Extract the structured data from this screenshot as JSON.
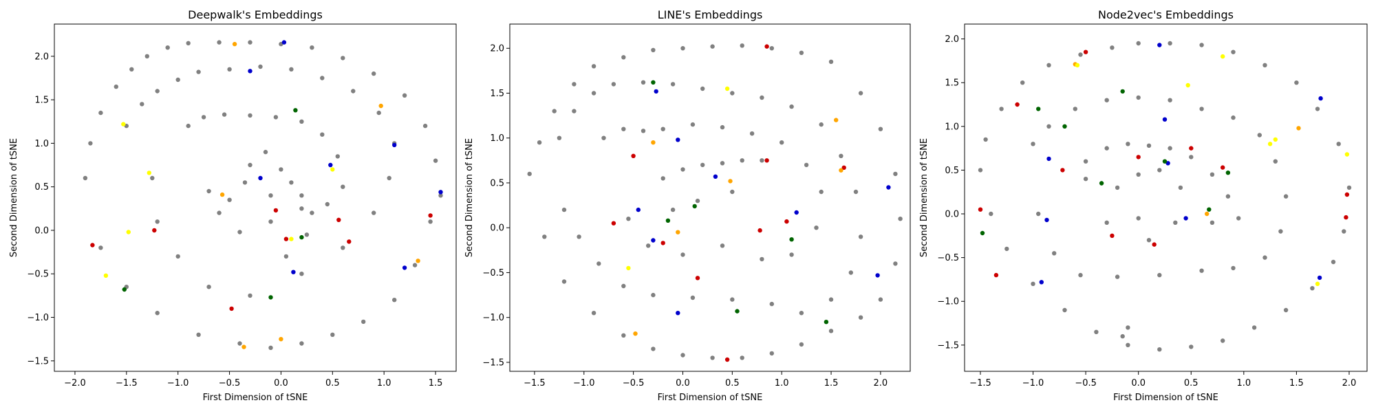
{
  "chart_data": [
    {
      "type": "scatter",
      "title": "Deepwalk's Embeddings",
      "xlabel": "First Dimension of tSNE",
      "ylabel": "Second Dimension of tSNE",
      "xlim": [
        -2.2,
        1.7
      ],
      "ylim": [
        -1.62,
        2.37
      ],
      "xticks": [
        -2.0,
        -1.5,
        -1.0,
        -0.5,
        0.0,
        0.5,
        1.0,
        1.5
      ],
      "xtick_labels": [
        "−2.0",
        "−1.5",
        "−1.0",
        "−0.5",
        "0.0",
        "0.5",
        "1.0",
        "1.5"
      ],
      "yticks": [
        -1.5,
        -1.0,
        -0.5,
        0.0,
        0.5,
        1.0,
        1.5,
        2.0
      ],
      "ytick_labels": [
        "−1.5",
        "−1.0",
        "−0.5",
        "0.0",
        "0.5",
        "1.0",
        "1.5",
        "2.0"
      ],
      "grid": false,
      "series": [
        {
          "color": "#808080",
          "x": [
            -1.9,
            -1.85,
            -1.75,
            -1.6,
            -1.45,
            -1.3,
            -1.1,
            -0.9,
            -0.6,
            -0.3,
            0.0,
            0.3,
            0.6,
            0.9,
            1.2,
            1.4,
            1.5,
            1.55,
            1.45,
            1.3,
            1.1,
            0.8,
            0.5,
            0.2,
            -0.1,
            -0.4,
            -0.8,
            -1.2,
            -1.5,
            -1.75,
            -1.5,
            -1.35,
            -1.2,
            -1.0,
            -0.8,
            -0.5,
            -0.2,
            0.1,
            0.4,
            0.7,
            0.95,
            1.1,
            1.05,
            0.9,
            0.6,
            0.2,
            -0.3,
            -0.7,
            -1.0,
            -1.2,
            -1.25,
            -0.9,
            -0.75,
            -0.55,
            -0.3,
            -0.05,
            0.2,
            0.4,
            0.55,
            0.6,
            0.45,
            0.2,
            -0.1,
            -0.4,
            -0.6,
            -0.7,
            -0.3,
            -0.15,
            0.0,
            0.1,
            0.2,
            0.3,
            -0.1,
            -0.35,
            -0.5,
            0.25,
            0.05
          ],
          "y": [
            0.6,
            1.0,
            1.35,
            1.65,
            1.85,
            2.0,
            2.1,
            2.15,
            2.16,
            2.16,
            2.14,
            2.1,
            1.98,
            1.8,
            1.55,
            1.2,
            0.8,
            0.4,
            0.1,
            -0.4,
            -0.8,
            -1.05,
            -1.2,
            -1.3,
            -1.35,
            -1.3,
            -1.2,
            -0.95,
            -0.65,
            -0.2,
            1.2,
            1.45,
            1.6,
            1.73,
            1.82,
            1.85,
            1.88,
            1.85,
            1.75,
            1.6,
            1.35,
            1.0,
            0.6,
            0.2,
            -0.2,
            -0.5,
            -0.75,
            -0.65,
            -0.3,
            0.1,
            0.6,
            1.2,
            1.3,
            1.33,
            1.32,
            1.3,
            1.25,
            1.1,
            0.85,
            0.5,
            0.3,
            0.25,
            0.1,
            -0.02,
            0.2,
            0.45,
            0.75,
            0.9,
            0.7,
            0.55,
            0.4,
            0.2,
            0.4,
            0.55,
            0.35,
            -0.05,
            -0.3
          ]
        },
        {
          "color": "#0000cc",
          "x": [
            0.03,
            -0.3,
            1.1,
            1.55,
            0.48,
            -0.2,
            1.2,
            0.12
          ],
          "y": [
            2.16,
            1.83,
            0.98,
            0.44,
            0.75,
            0.6,
            -0.43,
            -0.48
          ]
        },
        {
          "color": "#cc0000",
          "x": [
            -1.83,
            -1.23,
            -0.05,
            0.05,
            0.56,
            0.66,
            1.45,
            -0.48
          ],
          "y": [
            -0.17,
            0.0,
            0.23,
            -0.1,
            0.12,
            -0.13,
            0.17,
            -0.9
          ]
        },
        {
          "color": "#006400",
          "x": [
            0.14,
            -1.52,
            -0.1,
            0.2
          ],
          "y": [
            1.38,
            -0.68,
            -0.77,
            -0.08
          ]
        },
        {
          "color": "#ffa500",
          "x": [
            -0.45,
            0.97,
            -0.36,
            0.0,
            1.33,
            -0.57
          ],
          "y": [
            2.14,
            1.43,
            -1.34,
            -1.25,
            -0.35,
            0.41
          ]
        },
        {
          "color": "#ffff00",
          "x": [
            -1.53,
            -1.28,
            0.5,
            -1.48,
            -1.7,
            0.1
          ],
          "y": [
            1.22,
            0.66,
            0.7,
            -0.02,
            -0.52,
            -0.1
          ]
        }
      ]
    },
    {
      "type": "scatter",
      "title": "LINE's Embeddings",
      "xlabel": "First Dimension of tSNE",
      "ylabel": "Second Dimension of tSNE",
      "xlim": [
        -1.75,
        2.3
      ],
      "ylim": [
        -1.6,
        2.27
      ],
      "xticks": [
        -1.5,
        -1.0,
        -0.5,
        0.0,
        0.5,
        1.0,
        1.5,
        2.0
      ],
      "xtick_labels": [
        "−1.5",
        "−1.0",
        "−0.5",
        "0.0",
        "0.5",
        "1.0",
        "1.5",
        "2.0"
      ],
      "yticks": [
        -1.5,
        -1.0,
        -0.5,
        0.0,
        0.5,
        1.0,
        1.5,
        2.0
      ],
      "ytick_labels": [
        "−1.5",
        "−1.0",
        "−0.5",
        "0.0",
        "0.5",
        "1.0",
        "1.5",
        "2.0"
      ],
      "grid": false,
      "series": [
        {
          "color": "#808080",
          "x": [
            -1.55,
            -1.45,
            -1.3,
            -1.1,
            -0.9,
            -0.6,
            -0.3,
            0.0,
            0.3,
            0.6,
            0.9,
            1.2,
            1.5,
            1.8,
            2.0,
            2.15,
            2.2,
            2.15,
            2.0,
            1.8,
            1.5,
            1.2,
            0.9,
            0.6,
            0.3,
            0.0,
            -0.3,
            -0.6,
            -0.9,
            -1.2,
            -1.4,
            -1.25,
            -1.1,
            -0.9,
            -0.7,
            -0.4,
            -0.1,
            0.2,
            0.5,
            0.8,
            1.1,
            1.4,
            1.6,
            1.75,
            1.8,
            1.7,
            1.5,
            1.2,
            0.9,
            0.5,
            0.1,
            -0.3,
            -0.6,
            -0.85,
            -1.05,
            -1.2,
            -0.8,
            -0.6,
            -0.4,
            -0.2,
            0.1,
            0.4,
            0.7,
            1.0,
            1.25,
            1.4,
            1.35,
            1.1,
            0.8,
            0.4,
            0.0,
            -0.35,
            -0.55,
            -0.2,
            0.0,
            0.2,
            0.4,
            0.6,
            0.8,
            0.5,
            0.15,
            -0.1
          ],
          "y": [
            0.6,
            0.95,
            1.3,
            1.6,
            1.8,
            1.9,
            1.98,
            2.0,
            2.02,
            2.03,
            2.0,
            1.95,
            1.85,
            1.5,
            1.1,
            0.6,
            0.1,
            -0.4,
            -0.8,
            -1.0,
            -1.15,
            -1.3,
            -1.4,
            -1.45,
            -1.45,
            -1.42,
            -1.35,
            -1.2,
            -0.95,
            -0.6,
            -0.1,
            1.0,
            1.3,
            1.5,
            1.6,
            1.62,
            1.6,
            1.55,
            1.5,
            1.45,
            1.35,
            1.15,
            0.8,
            0.4,
            -0.1,
            -0.5,
            -0.8,
            -0.95,
            -0.85,
            -0.8,
            -0.78,
            -0.75,
            -0.65,
            -0.4,
            -0.1,
            0.2,
            1.0,
            1.1,
            1.08,
            1.1,
            1.15,
            1.12,
            1.05,
            0.95,
            0.7,
            0.4,
            0.0,
            -0.3,
            -0.35,
            -0.2,
            -0.3,
            -0.2,
            0.1,
            0.55,
            0.65,
            0.7,
            0.72,
            0.75,
            0.75,
            0.4,
            0.3,
            0.2
          ]
        },
        {
          "color": "#0000cc",
          "x": [
            -0.27,
            -0.05,
            0.33,
            -0.45,
            -0.05,
            2.08,
            1.97,
            1.15,
            -0.3
          ],
          "y": [
            1.52,
            0.98,
            0.57,
            0.2,
            -0.95,
            0.45,
            -0.53,
            0.17,
            -0.14
          ]
        },
        {
          "color": "#cc0000",
          "x": [
            0.85,
            -0.5,
            0.85,
            1.63,
            -0.2,
            0.45,
            0.78,
            1.05,
            0.15,
            -0.7
          ],
          "y": [
            2.02,
            0.8,
            0.75,
            0.67,
            -0.17,
            -1.47,
            -0.03,
            0.07,
            -0.56,
            0.05
          ]
        },
        {
          "color": "#006400",
          "x": [
            -0.3,
            -0.15,
            0.55,
            1.45,
            0.12,
            1.1
          ],
          "y": [
            1.62,
            0.08,
            -0.93,
            -1.05,
            0.24,
            -0.13
          ]
        },
        {
          "color": "#ffa500",
          "x": [
            -0.3,
            1.55,
            1.6,
            -0.48,
            -0.05,
            0.48
          ],
          "y": [
            0.95,
            1.2,
            0.64,
            -1.18,
            -0.05,
            0.52
          ]
        },
        {
          "color": "#ffff00",
          "x": [
            0.45,
            -0.55
          ],
          "y": [
            1.55,
            -0.45
          ]
        }
      ]
    },
    {
      "type": "scatter",
      "title": "Node2vec's Embeddings",
      "xlabel": "First Dimension of tSNE",
      "ylabel": "Second Dimension of tSNE",
      "xlim": [
        -1.65,
        2.17
      ],
      "ylim": [
        -1.8,
        2.17
      ],
      "xticks": [
        -1.5,
        -1.0,
        -0.5,
        0.0,
        0.5,
        1.0,
        1.5,
        2.0
      ],
      "xtick_labels": [
        "−1.5",
        "−1.0",
        "−0.5",
        "0.0",
        "0.5",
        "1.0",
        "1.5",
        "2.0"
      ],
      "yticks": [
        -1.5,
        -1.0,
        -0.5,
        0.0,
        0.5,
        1.0,
        1.5,
        2.0
      ],
      "ytick_labels": [
        "−1.5",
        "−1.0",
        "−0.5",
        "0.0",
        "0.5",
        "1.0",
        "1.5",
        "2.0"
      ],
      "grid": false,
      "series": [
        {
          "color": "#808080",
          "x": [
            -1.5,
            -1.45,
            -1.3,
            -1.1,
            -0.85,
            -0.55,
            -0.25,
            0.0,
            0.3,
            0.6,
            0.9,
            1.2,
            1.5,
            1.7,
            1.9,
            2.0,
            1.95,
            1.85,
            1.65,
            1.4,
            1.1,
            0.8,
            0.5,
            0.2,
            -0.1,
            -0.4,
            -0.7,
            -1.0,
            -1.25,
            -1.4,
            -1.0,
            -0.85,
            -0.6,
            -0.3,
            0.0,
            0.3,
            0.6,
            0.9,
            1.15,
            1.3,
            1.4,
            1.35,
            1.2,
            0.9,
            0.6,
            0.2,
            -0.2,
            -0.55,
            -0.8,
            -0.95,
            -0.5,
            -0.3,
            -0.1,
            0.1,
            0.3,
            0.5,
            0.7,
            0.85,
            0.95,
            0.7,
            0.35,
            0.0,
            -0.3,
            -0.5,
            -0.2,
            0.0,
            0.2,
            0.4,
            0.1,
            -0.1,
            -0.15
          ],
          "y": [
            0.5,
            0.85,
            1.2,
            1.5,
            1.7,
            1.82,
            1.9,
            1.95,
            1.95,
            1.93,
            1.85,
            1.7,
            1.5,
            1.2,
            0.8,
            0.3,
            -0.2,
            -0.55,
            -0.85,
            -1.1,
            -1.3,
            -1.45,
            -1.52,
            -1.55,
            -1.5,
            -1.35,
            -1.1,
            -0.8,
            -0.4,
            0.0,
            0.8,
            1.0,
            1.2,
            1.3,
            1.33,
            1.3,
            1.2,
            1.1,
            0.9,
            0.6,
            0.2,
            -0.2,
            -0.5,
            -0.62,
            -0.65,
            -0.7,
            -0.72,
            -0.7,
            -0.45,
            0.0,
            0.6,
            0.75,
            0.8,
            0.78,
            0.75,
            0.65,
            0.45,
            0.2,
            -0.05,
            -0.1,
            -0.1,
            -0.05,
            -0.1,
            0.4,
            0.3,
            0.45,
            0.5,
            0.3,
            -0.3,
            -1.3,
            -1.4
          ]
        },
        {
          "color": "#0000cc",
          "x": [
            0.2,
            0.25,
            1.73,
            -0.85,
            -0.87,
            0.28,
            0.45,
            -0.92,
            1.72
          ],
          "y": [
            1.93,
            1.08,
            1.32,
            0.63,
            -0.07,
            0.58,
            -0.05,
            -0.78,
            -0.73
          ]
        },
        {
          "color": "#cc0000",
          "x": [
            -0.5,
            -1.15,
            -0.72,
            0.0,
            0.5,
            0.8,
            -0.25,
            0.15,
            1.98,
            1.97,
            -1.5,
            -1.35
          ],
          "y": [
            1.85,
            1.25,
            0.5,
            0.65,
            0.75,
            0.53,
            -0.25,
            -0.35,
            0.22,
            -0.04,
            0.05,
            -0.7
          ]
        },
        {
          "color": "#006400",
          "x": [
            -0.15,
            -0.95,
            -0.7,
            0.85,
            0.67,
            -1.48,
            0.25,
            -0.35
          ],
          "y": [
            1.4,
            1.2,
            1.0,
            0.47,
            0.05,
            -0.22,
            0.6,
            0.35
          ]
        },
        {
          "color": "#ffa500",
          "x": [
            1.52,
            -0.6,
            0.65
          ],
          "y": [
            0.98,
            1.71,
            0.0
          ]
        },
        {
          "color": "#ffff00",
          "x": [
            -0.58,
            0.47,
            1.3,
            1.25,
            1.98,
            1.7,
            0.8
          ],
          "y": [
            1.7,
            1.47,
            0.85,
            0.8,
            0.68,
            -0.8,
            1.8
          ]
        }
      ]
    }
  ]
}
